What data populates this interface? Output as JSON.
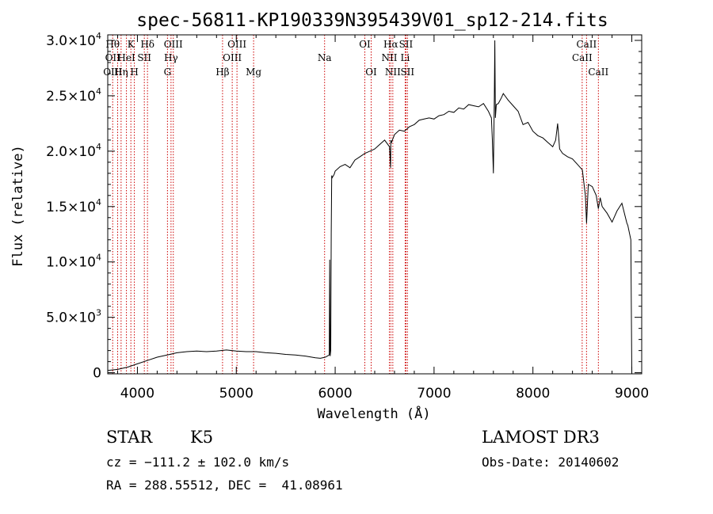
{
  "chart_data": {
    "type": "line",
    "title": "spec-56811-KP190339N395439V01_sp12-214.fits",
    "xlabel": "Wavelength (Å)",
    "ylabel": "Flux (relative)",
    "xlim": [
      3700,
      9100
    ],
    "ylim": [
      -100,
      30500
    ],
    "x_ticks": [
      4000,
      5000,
      6000,
      7000,
      8000,
      9000
    ],
    "y_ticks": [
      {
        "value": 0,
        "label": "0"
      },
      {
        "value": 5000,
        "label": "5.0×10",
        "exp": "3"
      },
      {
        "value": 10000,
        "label": "1.0×10",
        "exp": "4"
      },
      {
        "value": 15000,
        "label": "1.5×10",
        "exp": "4"
      },
      {
        "value": 20000,
        "label": "2.0×10",
        "exp": "4"
      },
      {
        "value": 25000,
        "label": "2.5×10",
        "exp": "4"
      },
      {
        "value": 30000,
        "label": "3.0×10",
        "exp": "4"
      }
    ],
    "series": [
      {
        "x": [
          3700,
          3800,
          3900,
          4000,
          4100,
          4200,
          4300,
          4400,
          4500,
          4600,
          4700,
          4800,
          4900,
          5000,
          5100,
          5200,
          5300,
          5400,
          5500,
          5600,
          5700,
          5800,
          5850,
          5900,
          5940,
          5945,
          5948,
          5950,
          5955,
          5960,
          5965,
          5970,
          5990,
          6000,
          6050,
          6100,
          6150,
          6200,
          6250,
          6300,
          6350,
          6400,
          6450,
          6500,
          6550,
          6560,
          6563,
          6570,
          6600,
          6650,
          6700,
          6750,
          6800,
          6850,
          6900,
          6950,
          7000,
          7050,
          7100,
          7150,
          7200,
          7250,
          7300,
          7350,
          7400,
          7450,
          7500,
          7550,
          7580,
          7590,
          7600,
          7610,
          7615,
          7620,
          7630,
          7650,
          7680,
          7700,
          7750,
          7800,
          7850,
          7900,
          7950,
          8000,
          8050,
          8100,
          8150,
          8200,
          8230,
          8250,
          8270,
          8300,
          8350,
          8400,
          8450,
          8500,
          8530,
          8542,
          8560,
          8600,
          8640,
          8662,
          8680,
          8700,
          8750,
          8800,
          8850,
          8900,
          8950,
          8960,
          8990,
          9000
        ],
        "y": [
          200,
          300,
          500,
          800,
          1100,
          1400,
          1600,
          1800,
          1900,
          1950,
          1900,
          1950,
          2050,
          1950,
          1900,
          1900,
          1800,
          1750,
          1650,
          1600,
          1500,
          1350,
          1300,
          1400,
          1600,
          10200,
          3000,
          1500,
          2000,
          12500,
          17800,
          17600,
          17900,
          18200,
          18600,
          18800,
          18500,
          19200,
          19500,
          19800,
          20000,
          20200,
          20600,
          21000,
          20400,
          18500,
          21000,
          20800,
          21500,
          21900,
          21800,
          22200,
          22400,
          22800,
          22900,
          23000,
          22900,
          23200,
          23300,
          23600,
          23500,
          23900,
          23800,
          24200,
          24100,
          24000,
          24300,
          23600,
          23000,
          21000,
          18000,
          25000,
          30000,
          23000,
          24200,
          24300,
          24800,
          25200,
          24600,
          24100,
          23600,
          22400,
          22600,
          21800,
          21400,
          21200,
          20800,
          20400,
          21000,
          22500,
          20200,
          19800,
          19500,
          19300,
          18800,
          18300,
          16000,
          13500,
          17000,
          16800,
          16000,
          14800,
          15800,
          15000,
          14400,
          13600,
          14600,
          15300,
          13500,
          13300,
          12000,
          0
        ]
      }
    ],
    "line_marks": [
      {
        "x": 3750,
        "labels": [
          {
            "text": "Hθ",
            "row": 1
          },
          {
            "text": "OII",
            "row": 2
          },
          {
            "text": "OIII",
            "row": 3
          }
        ]
      },
      {
        "x": 3800,
        "labels": []
      },
      {
        "x": 3835,
        "labels": [
          {
            "text": "Hη",
            "row": 3
          }
        ]
      },
      {
        "x": 3889,
        "labels": [
          {
            "text": "HeI",
            "row": 2
          }
        ]
      },
      {
        "x": 3934,
        "labels": [
          {
            "text": "K",
            "row": 1
          }
        ]
      },
      {
        "x": 3969,
        "labels": [
          {
            "text": "H",
            "row": 3
          }
        ]
      },
      {
        "x": 4070,
        "labels": [
          {
            "text": "SII",
            "row": 2
          }
        ]
      },
      {
        "x": 4102,
        "labels": [
          {
            "text": "Hδ",
            "row": 1
          }
        ]
      },
      {
        "x": 4304,
        "labels": [
          {
            "text": "G",
            "row": 3
          }
        ]
      },
      {
        "x": 4340,
        "labels": [
          {
            "text": "Hγ",
            "row": 2
          }
        ]
      },
      {
        "x": 4363,
        "labels": [
          {
            "text": "OIII",
            "row": 1
          }
        ]
      },
      {
        "x": 4861,
        "labels": [
          {
            "text": "Hβ",
            "row": 3
          }
        ]
      },
      {
        "x": 4959,
        "labels": [
          {
            "text": "OIII",
            "row": 2
          }
        ]
      },
      {
        "x": 5007,
        "labels": [
          {
            "text": "OIII",
            "row": 1
          }
        ]
      },
      {
        "x": 5175,
        "labels": [
          {
            "text": "Mg",
            "row": 3
          }
        ]
      },
      {
        "x": 5893,
        "labels": [
          {
            "text": "Na",
            "row": 2
          }
        ]
      },
      {
        "x": 6300,
        "labels": [
          {
            "text": "OI",
            "row": 1
          }
        ]
      },
      {
        "x": 6364,
        "labels": [
          {
            "text": "OI",
            "row": 3
          }
        ]
      },
      {
        "x": 6548,
        "labels": [
          {
            "text": "NII",
            "row": 2
          }
        ]
      },
      {
        "x": 6563,
        "labels": [
          {
            "text": "Hα",
            "row": 1
          }
        ]
      },
      {
        "x": 6583,
        "labels": [
          {
            "text": "NII",
            "row": 3
          }
        ]
      },
      {
        "x": 6708,
        "labels": [
          {
            "text": "Li",
            "row": 2
          }
        ]
      },
      {
        "x": 6716,
        "labels": [
          {
            "text": "SII",
            "row": 1
          }
        ]
      },
      {
        "x": 6731,
        "labels": [
          {
            "text": "SII",
            "row": 3
          }
        ]
      },
      {
        "x": 8498,
        "labels": [
          {
            "text": "CaII",
            "row": 2
          }
        ]
      },
      {
        "x": 8542,
        "labels": [
          {
            "text": "CaII",
            "row": 1
          }
        ]
      },
      {
        "x": 8662,
        "labels": [
          {
            "text": "CaII",
            "row": 3
          }
        ]
      }
    ]
  },
  "info": {
    "class": "STAR",
    "subclass": "K5",
    "survey": "LAMOST DR3",
    "cz": "cz = −111.2 ± 102.0 km/s",
    "obs_date": "Obs-Date: 20140602",
    "coords": "RA = 288.55512, DEC =  41.08961"
  },
  "colors": {
    "spectrum": "#000000",
    "line_marks": "#cc0000",
    "axes": "#000000"
  }
}
